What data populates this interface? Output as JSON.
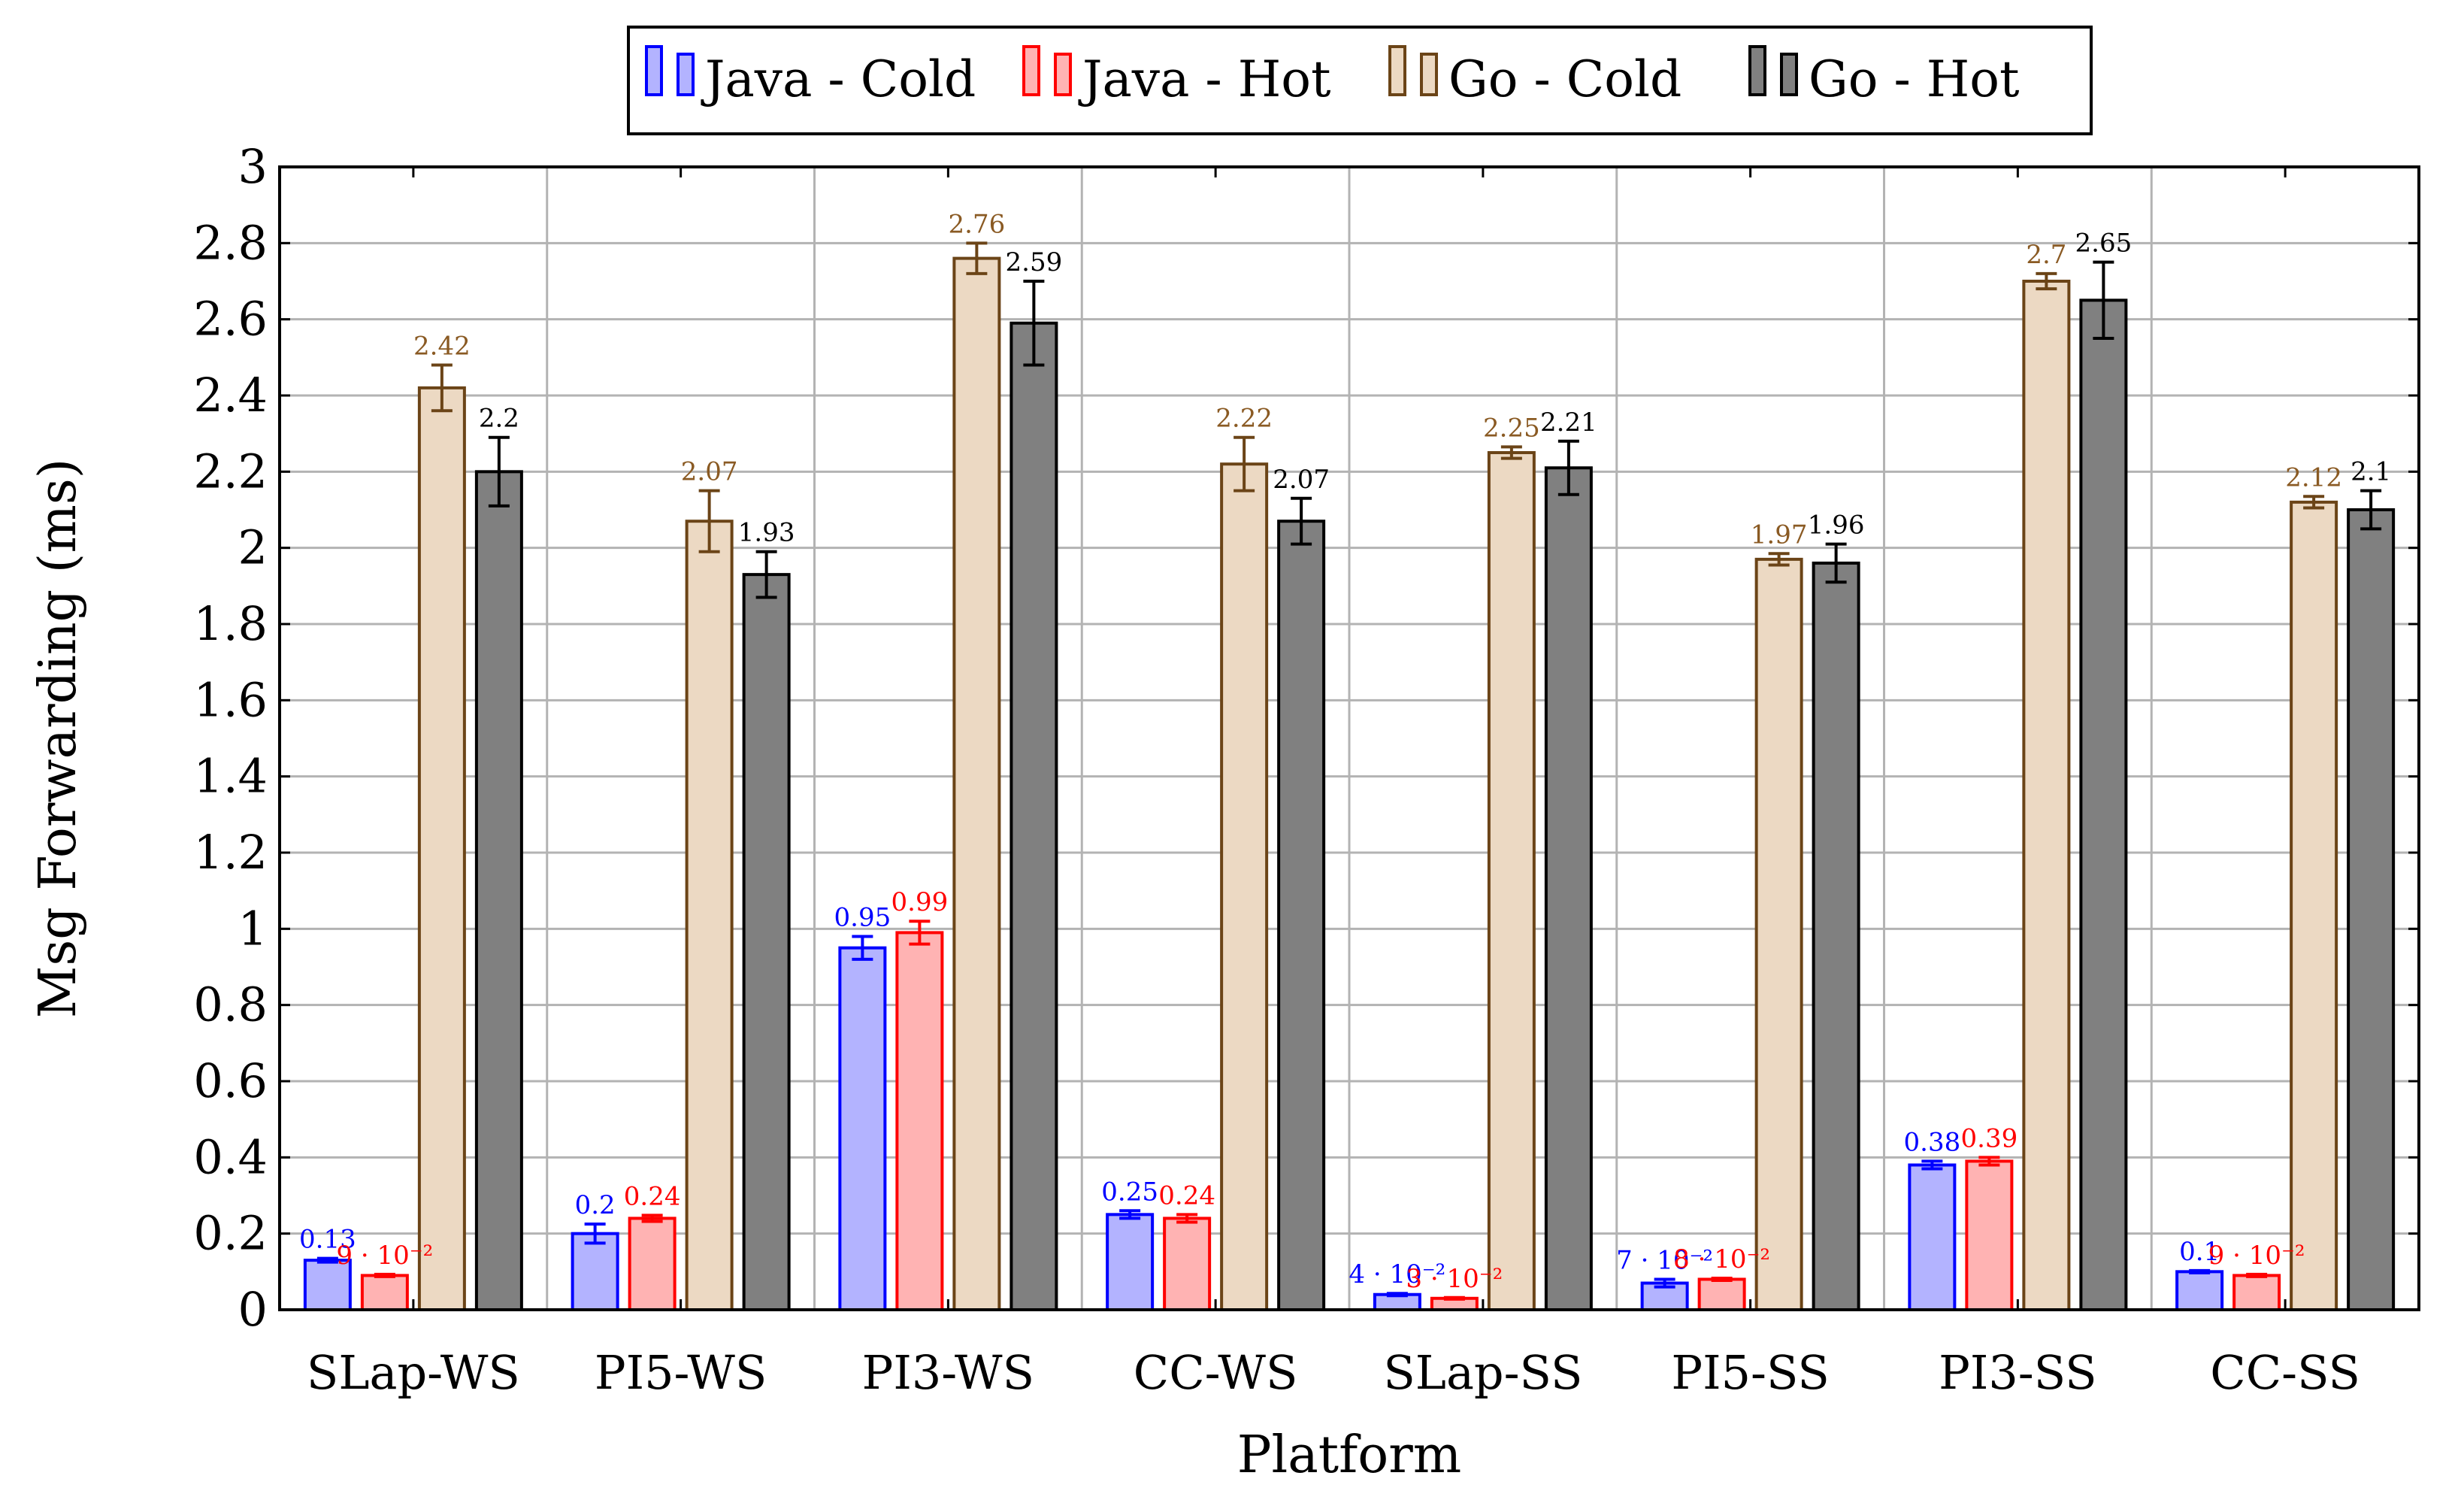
{
  "chart_data": {
    "type": "bar",
    "xlabel": "Platform",
    "ylabel": "Msg Forwarding (ms)",
    "ylim": [
      0,
      3
    ],
    "yticks": [
      "0",
      "0.2",
      "0.4",
      "0.6",
      "0.8",
      "1",
      "1.2",
      "1.4",
      "1.6",
      "1.8",
      "2",
      "2.2",
      "2.4",
      "2.6",
      "2.8",
      "3"
    ],
    "grid": true,
    "legend_position": "top-center",
    "categories": [
      "SLap-WS",
      "PI5-WS",
      "PI3-WS",
      "CC-WS",
      "SLap-SS",
      "PI5-SS",
      "PI3-SS",
      "CC-SS"
    ],
    "series": [
      {
        "name": "Java - Cold",
        "fill": "#b3b3ff",
        "stroke": "#0000ff",
        "label_color": "#0000ff",
        "values": [
          0.13,
          0.2,
          0.95,
          0.25,
          0.04,
          0.07,
          0.38,
          0.1
        ],
        "errors": [
          0.005,
          0.025,
          0.03,
          0.01,
          0.003,
          0.01,
          0.01,
          0.003
        ],
        "labels": [
          "0.13",
          "0.2",
          "0.95",
          "0.25",
          "4 · 10⁻²",
          "7 · 10⁻²",
          "0.38",
          "0.1"
        ]
      },
      {
        "name": "Java - Hot",
        "fill": "#ffb3b3",
        "stroke": "#ff0000",
        "label_color": "#ff0000",
        "values": [
          0.09,
          0.24,
          0.99,
          0.24,
          0.03,
          0.08,
          0.39,
          0.09
        ],
        "errors": [
          0.003,
          0.008,
          0.03,
          0.01,
          0.002,
          0.003,
          0.01,
          0.003
        ],
        "labels": [
          "9 · 10⁻²",
          "0.24",
          "0.99",
          "0.24",
          "3 · 10⁻²",
          "8 · 10⁻²",
          "0.39",
          "9 · 10⁻²"
        ]
      },
      {
        "name": "Go - Cold",
        "fill": "#ecd9c3",
        "stroke": "#6b4417",
        "label_color": "#8a5a23",
        "values": [
          2.42,
          2.07,
          2.76,
          2.22,
          2.25,
          1.97,
          2.7,
          2.12
        ],
        "errors": [
          0.06,
          0.08,
          0.04,
          0.07,
          0.015,
          0.015,
          0.02,
          0.015
        ],
        "labels": [
          "2.42",
          "2.07",
          "2.76",
          "2.22",
          "2.25",
          "1.97",
          "2.7",
          "2.12"
        ]
      },
      {
        "name": "Go - Hot",
        "fill": "#808080",
        "stroke": "#000000",
        "label_color": "#000000",
        "values": [
          2.2,
          1.93,
          2.59,
          2.07,
          2.21,
          1.96,
          2.65,
          2.1
        ],
        "errors": [
          0.09,
          0.06,
          0.11,
          0.06,
          0.07,
          0.05,
          0.1,
          0.05
        ],
        "labels": [
          "2.2",
          "1.93",
          "2.59",
          "2.07",
          "2.21",
          "1.96",
          "2.65",
          "2.1"
        ]
      }
    ]
  }
}
